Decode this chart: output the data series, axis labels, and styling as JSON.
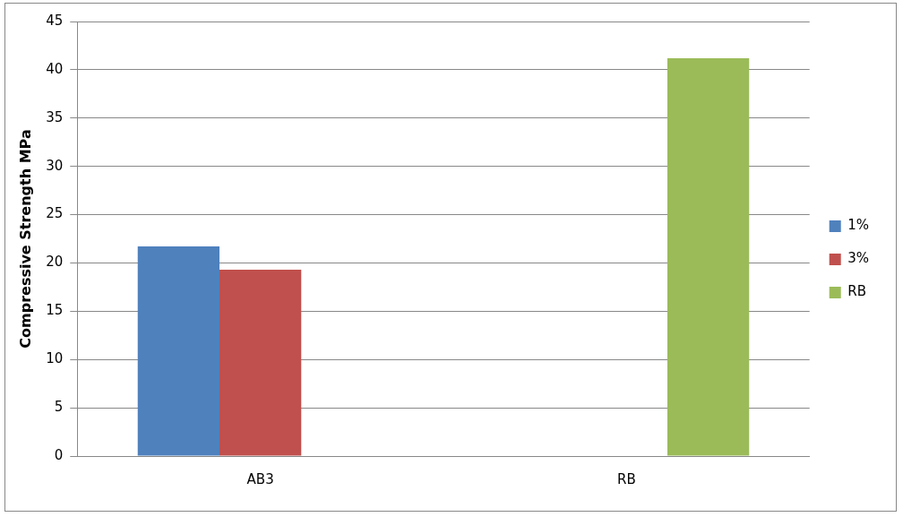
{
  "chart_data": {
    "type": "bar",
    "ylabel": "Compressive Strength MPa",
    "categories": [
      "AB3",
      "RB"
    ],
    "series": [
      {
        "name": "1%",
        "color": "#4f81bd",
        "values": [
          21.7,
          null
        ]
      },
      {
        "name": "3%",
        "color": "#c0504d",
        "values": [
          19.3,
          null
        ]
      },
      {
        "name": "RB",
        "color": "#9bbb59",
        "values": [
          null,
          41.2
        ]
      }
    ],
    "ylim": [
      0,
      45
    ],
    "yticks": [
      0,
      5,
      10,
      15,
      20,
      25,
      30,
      35,
      40,
      45
    ],
    "grid": "y",
    "legend": "right"
  }
}
